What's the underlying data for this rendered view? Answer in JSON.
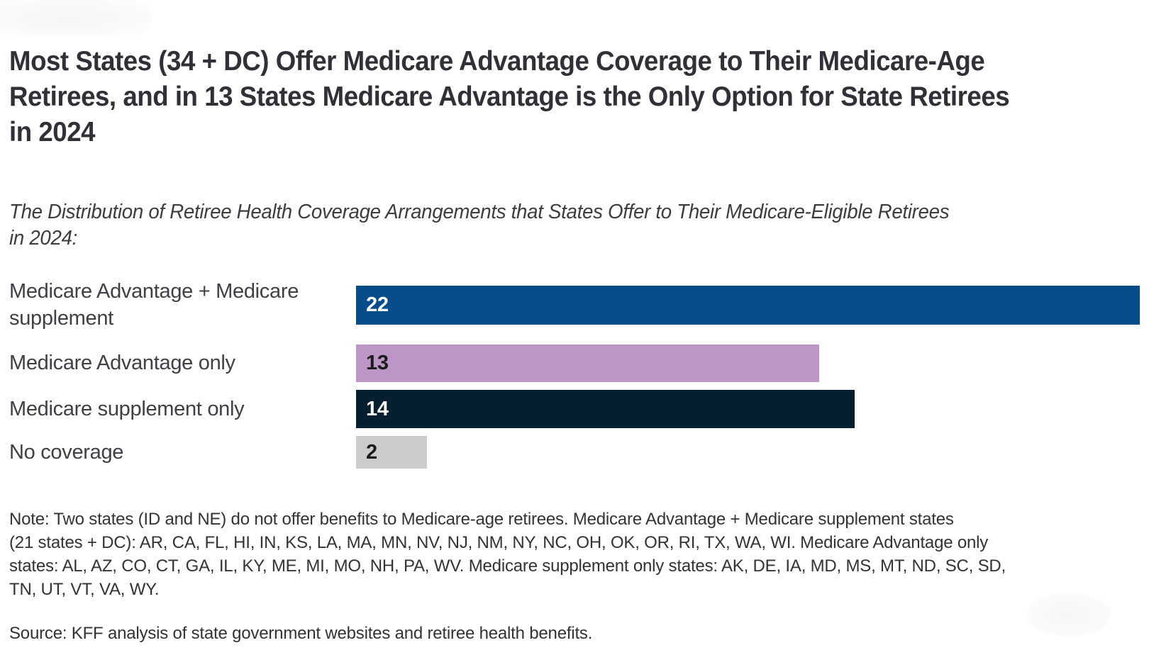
{
  "header": {
    "title_lines": [
      "Most States (34 + DC) Offer Medicare Advantage Coverage to Their Medicare-Age",
      "Retirees, and in 13 States Medicare Advantage is the Only Option for State Retirees",
      "in 2024"
    ],
    "subtitle_lines": [
      "The Distribution of Retiree Health Coverage Arrangements that States Offer to Their Medicare-Eligible Retirees",
      "in 2024:"
    ]
  },
  "chart_data": {
    "type": "bar",
    "orientation": "horizontal",
    "title": "Most States (34 + DC) Offer Medicare Advantage Coverage to Their Medicare-Age Retirees, and in 13 States Medicare Advantage is the Only Option for State Retirees in 2024",
    "subtitle": "The Distribution of Retiree Health Coverage Arrangements that States Offer to Their Medicare-Eligible Retirees in 2024:",
    "categories": [
      "Medicare Advantage + Medicare supplement",
      "Medicare Advantage only",
      "Medicare supplement only",
      "No coverage"
    ],
    "values": [
      22,
      13,
      14,
      2
    ],
    "xlim": [
      0,
      22
    ],
    "bar_colors": [
      "#074d8a",
      "#bb96c6",
      "#041f30",
      "#cccccc"
    ],
    "value_text_colors": [
      "#ffffff",
      "#1b1b1b",
      "#ffffff",
      "#1b1b1b"
    ],
    "value_label_position": "inside-left",
    "axes_shown": false,
    "grid": false,
    "legend": false
  },
  "footer": {
    "note_lines": [
      "Note: Two states (ID and NE) do not offer benefits to Medicare-age retirees. Medicare Advantage + Medicare supplement states",
      "(21 states + DC): AR, CA, FL, HI, IN, KS, LA, MA, MN, NV, NJ, NM, NY, NC, OH, OK, OR, RI, TX, WA, WI. Medicare Advantage only",
      "states: AL, AZ, CO, CT, GA, IL, KY, ME, MI, MO, NH, PA, WV. Medicare supplement only states: AK, DE, IA, MD, MS, MT, ND, SC, SD,",
      "TN, UT, VT, VA, WY."
    ],
    "source": "Source: KFF analysis of state government websites and retiree health benefits."
  }
}
